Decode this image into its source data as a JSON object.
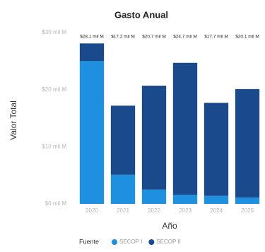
{
  "chart_data": {
    "type": "stacked_bar",
    "title": "Gasto Anual",
    "x_label": "Año",
    "y_label": "Valor Total",
    "categories": [
      "2020",
      "2021",
      "2022",
      "2023",
      "2024",
      "2025"
    ],
    "series": [
      {
        "name": "SECOP I",
        "color": "#1f8fe0",
        "values": [
          25.0,
          5.1,
          2.5,
          1.6,
          1.4,
          1.1
        ]
      },
      {
        "name": "SECOP II",
        "color": "#1b4a8c",
        "values": [
          3.1,
          12.1,
          18.2,
          23.1,
          16.3,
          19.0
        ]
      }
    ],
    "totals": [
      28.1,
      17.2,
      20.7,
      24.7,
      17.7,
      20.1
    ],
    "total_labels": [
      "$28,1 mil M",
      "$17,2 mil M",
      "$20,7 mil M",
      "$24,7 mil M",
      "$17,7 mil M",
      "$20,1 mil M"
    ],
    "legend_title": "Fuente",
    "legend_position": "bottom",
    "ylim": [
      0,
      30
    ],
    "yticks": [
      {
        "value": 0,
        "label": "$0 mil M"
      },
      {
        "value": 10,
        "label": "$10 mil M"
      },
      {
        "value": 20,
        "label": "$20 mil M"
      },
      {
        "value": 30,
        "label": "$30 mil M"
      }
    ]
  }
}
